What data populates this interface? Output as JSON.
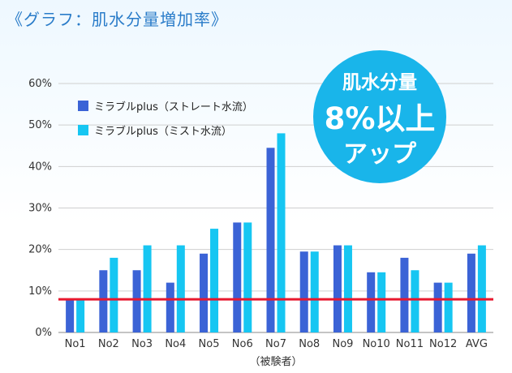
{
  "title": "《グラフ：肌水分量増加率》",
  "badge": {
    "line1": "肌水分量",
    "line2": "8%以上",
    "line3": "アップ"
  },
  "colors": {
    "series1": "#3b63d6",
    "series2": "#16c6f2",
    "threshold": "#e8182e",
    "title": "#2a7cc9",
    "badge": "#19b5ea"
  },
  "chart_data": {
    "type": "bar",
    "categories": [
      "No1",
      "No2",
      "No3",
      "No4",
      "No5",
      "No6",
      "No7",
      "No8",
      "No9",
      "No10",
      "No11",
      "No12",
      "AVG"
    ],
    "series": [
      {
        "name": "ミラブルplus（ストレート水流）",
        "values": [
          8,
          15,
          15,
          12,
          19,
          26.5,
          44.5,
          19.5,
          21,
          14.5,
          18,
          12,
          19
        ]
      },
      {
        "name": "ミラブルplus（ミスト水流）",
        "values": [
          8,
          18,
          21,
          21,
          25,
          26.5,
          48,
          19.5,
          21,
          14.5,
          15,
          12,
          21
        ]
      }
    ],
    "threshold": 8,
    "ylim": [
      0,
      60
    ],
    "yticks": [
      0,
      10,
      20,
      30,
      40,
      50,
      60
    ],
    "ytick_labels": [
      "0%",
      "10%",
      "20%",
      "30%",
      "40%",
      "50%",
      "60%"
    ],
    "xlabel": "（被験者）",
    "legend": "top-left",
    "grid": true
  }
}
